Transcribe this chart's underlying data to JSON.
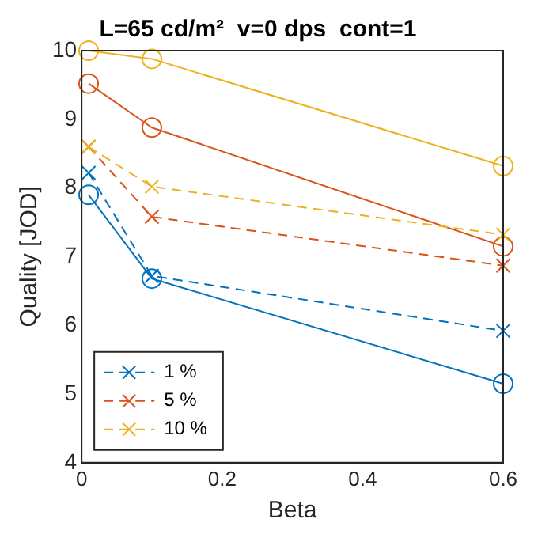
{
  "chart_data": {
    "type": "line",
    "title": "L=65 cd/m²  v=0 dps  cont=1",
    "xlabel": "Beta",
    "ylabel": "Quality [JOD]",
    "x": [
      0.01,
      0.1,
      0.6
    ],
    "series": [
      {
        "color": "#0072bd",
        "marker": "circle",
        "line_style": "solid",
        "values": [
          7.9,
          6.68,
          5.15
        ]
      },
      {
        "color": "#d95319",
        "marker": "circle",
        "line_style": "solid",
        "values": [
          9.52,
          8.88,
          7.15
        ]
      },
      {
        "color": "#edb120",
        "marker": "circle",
        "line_style": "solid",
        "values": [
          10.0,
          9.88,
          8.32
        ]
      },
      {
        "name": "1 %",
        "color": "#0072bd",
        "marker": "cross",
        "line_style": "dashed",
        "values": [
          8.22,
          6.72,
          5.92
        ]
      },
      {
        "name": "5 %",
        "color": "#d95319",
        "marker": "cross",
        "line_style": "dashed",
        "values": [
          8.6,
          7.58,
          6.87
        ]
      },
      {
        "name": "10 %",
        "color": "#edb120",
        "marker": "cross",
        "line_style": "dashed",
        "values": [
          8.6,
          8.02,
          7.32
        ]
      }
    ],
    "xlim": [
      0,
      0.6
    ],
    "xticks": [
      0,
      0.2,
      0.4,
      0.6
    ],
    "ylim": [
      4,
      10
    ],
    "yticks": [
      4,
      5,
      6,
      7,
      8,
      9,
      10
    ],
    "grid": false,
    "legend": "bottom left"
  }
}
